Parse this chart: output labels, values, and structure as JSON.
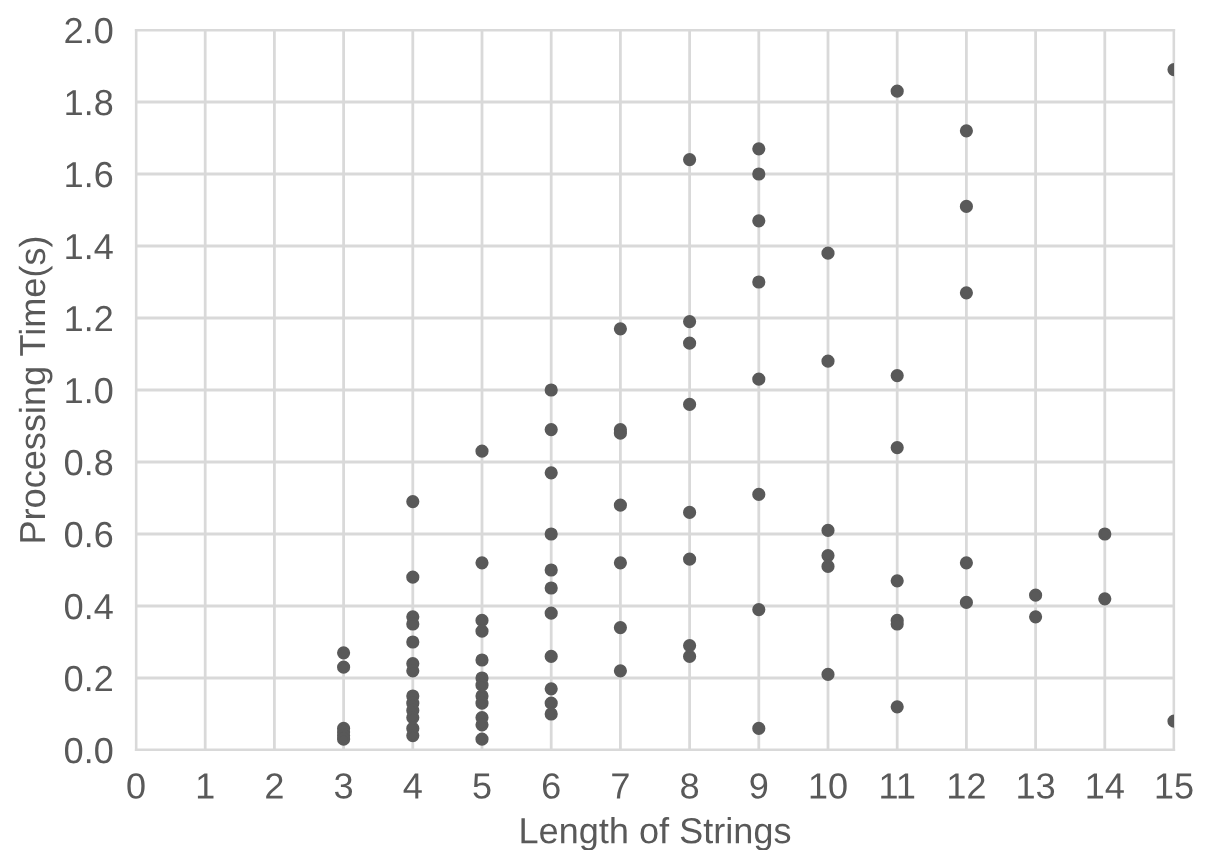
{
  "chart_data": {
    "type": "scatter",
    "xlabel": "Length of Strings",
    "ylabel": "Processing Time(s)",
    "x": [
      3,
      3,
      3,
      3,
      3,
      3,
      4,
      4,
      4,
      4,
      4,
      4,
      4,
      4,
      4,
      4,
      4,
      4,
      4,
      5,
      5,
      5,
      5,
      5,
      5,
      5,
      5,
      5,
      5,
      5,
      5,
      6,
      6,
      6,
      6,
      6,
      6,
      6,
      6,
      6,
      6,
      6,
      7,
      7,
      7,
      7,
      7,
      7,
      7,
      8,
      8,
      8,
      8,
      8,
      8,
      8,
      8,
      9,
      9,
      9,
      9,
      9,
      9,
      9,
      9,
      10,
      10,
      10,
      10,
      10,
      10,
      11,
      11,
      11,
      11,
      11,
      11,
      11,
      12,
      12,
      12,
      12,
      12,
      13,
      13,
      14,
      14,
      15,
      15
    ],
    "series": [
      {
        "color": "#595959",
        "values": [
          0.27,
          0.23,
          0.06,
          0.05,
          0.04,
          0.03,
          0.69,
          0.48,
          0.37,
          0.35,
          0.3,
          0.24,
          0.22,
          0.15,
          0.13,
          0.11,
          0.09,
          0.06,
          0.04,
          0.83,
          0.52,
          0.36,
          0.33,
          0.25,
          0.2,
          0.18,
          0.15,
          0.13,
          0.09,
          0.07,
          0.03,
          1.0,
          0.89,
          0.77,
          0.6,
          0.5,
          0.45,
          0.38,
          0.26,
          0.17,
          0.13,
          0.1,
          1.17,
          0.89,
          0.88,
          0.68,
          0.52,
          0.34,
          0.22,
          1.64,
          1.19,
          1.13,
          0.96,
          0.66,
          0.53,
          0.29,
          0.26,
          1.67,
          1.6,
          1.47,
          1.3,
          1.03,
          0.71,
          0.39,
          0.06,
          1.38,
          1.08,
          0.61,
          0.54,
          0.51,
          0.21,
          1.83,
          1.04,
          0.84,
          0.47,
          0.36,
          0.35,
          0.12,
          1.72,
          1.51,
          1.27,
          0.52,
          0.41,
          0.43,
          0.37,
          0.6,
          0.42,
          1.89,
          0.08
        ]
      }
    ],
    "xlim": [
      0,
      15
    ],
    "xticks": [
      0,
      1,
      2,
      3,
      4,
      5,
      6,
      7,
      8,
      9,
      10,
      11,
      12,
      13,
      14,
      15
    ],
    "ylim": [
      0,
      2.0
    ],
    "yticks": [
      {
        "value": 0,
        "label": "0.0"
      },
      {
        "value": 0.2,
        "label": "0.2"
      },
      {
        "value": 0.4,
        "label": "0.4"
      },
      {
        "value": 0.6,
        "label": "0.6"
      },
      {
        "value": 0.8,
        "label": "0.8"
      },
      {
        "value": 1.0,
        "label": "1.0"
      },
      {
        "value": 1.2,
        "label": "1.2"
      },
      {
        "value": 1.4,
        "label": "1.4"
      },
      {
        "value": 1.6,
        "label": "1.6"
      },
      {
        "value": 1.8,
        "label": "1.8"
      },
      {
        "value": 2.0,
        "label": "2.0"
      }
    ],
    "grid": true,
    "marker": "circle",
    "legend": false
  }
}
